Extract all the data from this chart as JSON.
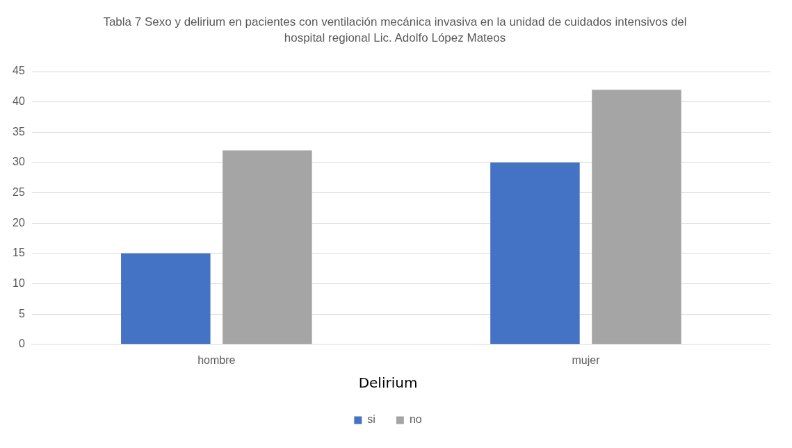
{
  "chart_data": {
    "type": "bar",
    "title": "Tabla 7 Sexo y delirium  en  pacientes con ventilación mecánica invasiva en la unidad de cuidados intensivos  del hospital regional Lic. Adolfo López Mateos",
    "categories": [
      "hombre",
      "mujer"
    ],
    "series": [
      {
        "name": "si",
        "color": "#4472c4",
        "values": [
          15,
          30
        ]
      },
      {
        "name": "no",
        "color": "#a5a5a5",
        "values": [
          32,
          42
        ]
      }
    ],
    "legend_title": "Delirium",
    "legend": "bottom",
    "grid": "y",
    "ylim": [
      0,
      45
    ],
    "yticks": [
      0,
      5,
      10,
      15,
      20,
      25,
      30,
      35,
      40,
      45
    ]
  }
}
